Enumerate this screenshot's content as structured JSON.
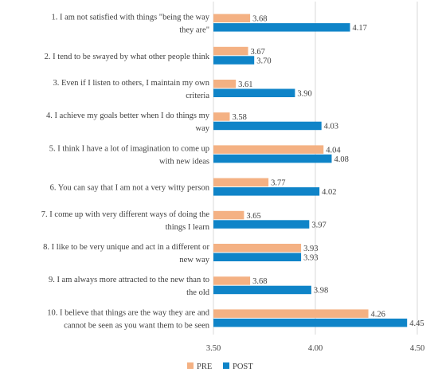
{
  "chart_data": {
    "type": "bar",
    "orientation": "horizontal",
    "categories": [
      [
        "1. I am not satisfied with things \"being the way",
        "they are\""
      ],
      [
        "2. I tend to be swayed by what other people think"
      ],
      [
        "3. Even if I listen to others, I maintain my own",
        "criteria"
      ],
      [
        "4. I achieve my goals better when I do things my",
        "way"
      ],
      [
        "5. I think I have a lot of imagination to come up",
        "with new ideas"
      ],
      [
        "6. You can say that I am not a very witty person"
      ],
      [
        "7. I come up with very different ways of doing the",
        "things I learn"
      ],
      [
        "8. I like to be very unique and act in a different or",
        "new way"
      ],
      [
        "9. I am always more attracted to the new than to",
        "the old"
      ],
      [
        "10. I believe that things are the way they are and",
        "cannot be seen as you want them to be seen"
      ]
    ],
    "series": [
      {
        "name": "PRE",
        "color": "#f4b183",
        "values": [
          3.68,
          3.67,
          3.61,
          3.58,
          4.04,
          3.77,
          3.65,
          3.93,
          3.68,
          4.26
        ]
      },
      {
        "name": "POST",
        "color": "#0f84c8",
        "values": [
          4.17,
          3.7,
          3.9,
          4.03,
          4.08,
          4.02,
          3.97,
          3.93,
          3.98,
          4.45
        ]
      }
    ],
    "xlim": [
      3.5,
      4.5
    ],
    "xticks": [
      "3.50",
      "4.00",
      "4.50"
    ],
    "grid": true,
    "legend_position": "bottom"
  }
}
